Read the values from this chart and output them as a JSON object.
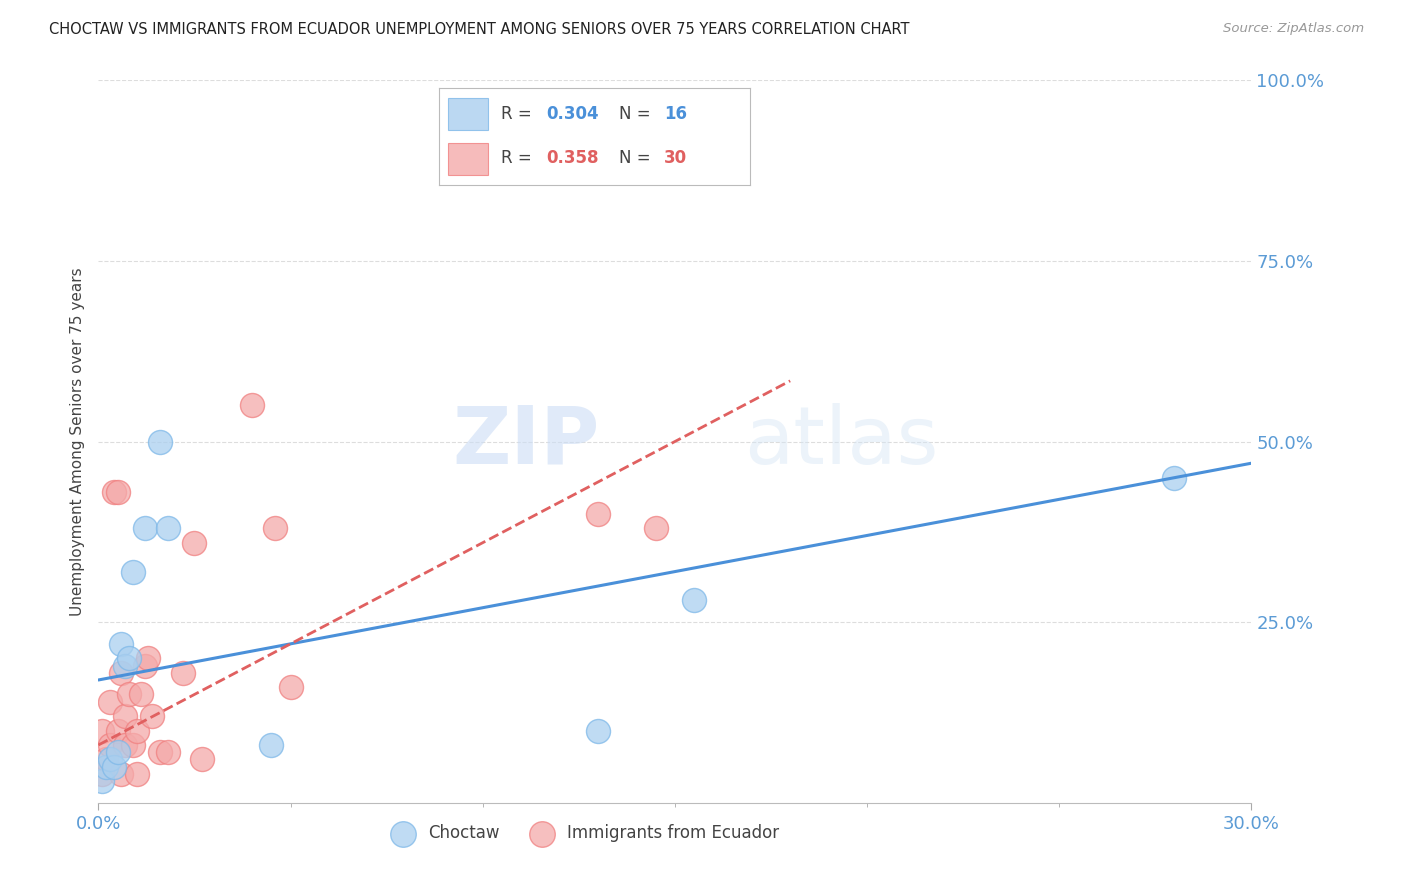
{
  "title": "CHOCTAW VS IMMIGRANTS FROM ECUADOR UNEMPLOYMENT AMONG SENIORS OVER 75 YEARS CORRELATION CHART",
  "source": "Source: ZipAtlas.com",
  "ylabel": "Unemployment Among Seniors over 75 years",
  "xlim": [
    0.0,
    0.3
  ],
  "ylim": [
    0.0,
    1.0
  ],
  "xticks_major": [
    0.0,
    0.3
  ],
  "xticks_minor": [
    0.05,
    0.1,
    0.15,
    0.2,
    0.25
  ],
  "xticklabels": [
    "0.0%",
    "30.0%"
  ],
  "yticks": [
    0.25,
    0.5,
    0.75,
    1.0
  ],
  "yticklabels": [
    "25.0%",
    "50.0%",
    "75.0%",
    "100.0%"
  ],
  "background_color": "#ffffff",
  "grid_color": "#dddddd",
  "choctaw_color": "#aacfef",
  "ecuador_color": "#f4aaaa",
  "choctaw_edge_color": "#7eb8e8",
  "ecuador_edge_color": "#f08080",
  "choctaw_line_color": "#4a90d9",
  "ecuador_line_color": "#e06060",
  "tick_color": "#5b9bd5",
  "choctaw_R": "0.304",
  "choctaw_N": "16",
  "ecuador_R": "0.358",
  "ecuador_N": "30",
  "watermark_zip": "ZIP",
  "watermark_atlas": "atlas",
  "choctaw_x": [
    0.001,
    0.002,
    0.003,
    0.004,
    0.005,
    0.006,
    0.007,
    0.008,
    0.009,
    0.012,
    0.016,
    0.018,
    0.045,
    0.13,
    0.155,
    0.28
  ],
  "choctaw_y": [
    0.03,
    0.05,
    0.06,
    0.05,
    0.07,
    0.22,
    0.19,
    0.2,
    0.32,
    0.38,
    0.5,
    0.38,
    0.08,
    0.1,
    0.28,
    0.45
  ],
  "ecuador_x": [
    0.001,
    0.001,
    0.002,
    0.003,
    0.003,
    0.004,
    0.005,
    0.005,
    0.006,
    0.006,
    0.007,
    0.007,
    0.008,
    0.009,
    0.01,
    0.01,
    0.011,
    0.012,
    0.013,
    0.014,
    0.016,
    0.018,
    0.022,
    0.025,
    0.027,
    0.04,
    0.046,
    0.05,
    0.13,
    0.145
  ],
  "ecuador_y": [
    0.04,
    0.1,
    0.06,
    0.08,
    0.14,
    0.43,
    0.43,
    0.1,
    0.18,
    0.04,
    0.12,
    0.08,
    0.15,
    0.08,
    0.1,
    0.04,
    0.15,
    0.19,
    0.2,
    0.12,
    0.07,
    0.07,
    0.18,
    0.36,
    0.06,
    0.55,
    0.38,
    0.16,
    0.4,
    0.38
  ],
  "choctaw_intercept": 0.17,
  "choctaw_slope": 1.0,
  "ecuador_intercept": 0.08,
  "ecuador_slope": 2.8
}
